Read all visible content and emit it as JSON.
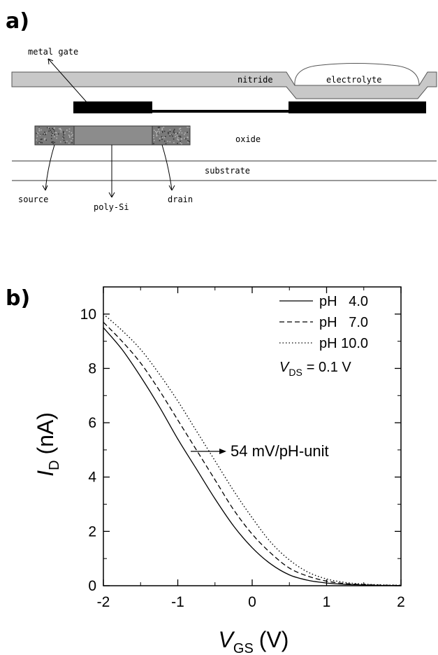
{
  "panel_a": {
    "label": "a)",
    "labels": {
      "metal_gate": "metal gate",
      "nitride": "nitride",
      "electrolyte": "electrolyte",
      "oxide": "oxide",
      "substrate": "substrate",
      "source": "source",
      "poly_si": "poly-Si",
      "drain": "drain"
    },
    "colors": {
      "nitride": "#c8c8c8",
      "gate": "#000000",
      "polysi": "#8c8c8c",
      "contact": "#7a7a7a"
    }
  },
  "panel_b": {
    "label": "b)",
    "annotation": "54 mV/pH-unit",
    "vds": {
      "symbol": "V",
      "subscript": "DS",
      "value": "= 0.1 V"
    }
  },
  "chart_data": {
    "type": "line",
    "title": "",
    "xlabel": {
      "symbol": "V",
      "subscript": "GS",
      "unit": "(V)"
    },
    "ylabel": {
      "symbol": "I",
      "subscript": "D",
      "unit": "(nA)"
    },
    "xlim": [
      -2,
      2
    ],
    "ylim": [
      0,
      11
    ],
    "x_ticks": [
      "-2",
      "-1",
      "0",
      "1",
      "2"
    ],
    "y_ticks": [
      "0",
      "2",
      "4",
      "6",
      "8",
      "10"
    ],
    "grid": false,
    "legend_position": "top-right",
    "x": [
      -2.0,
      -1.75,
      -1.5,
      -1.25,
      -1.0,
      -0.75,
      -0.5,
      -0.25,
      0.0,
      0.25,
      0.5,
      0.75,
      1.0,
      1.25,
      1.5,
      1.75,
      2.0
    ],
    "series": [
      {
        "name": "pH   4.0",
        "dash": "solid",
        "values": [
          9.5,
          8.7,
          7.7,
          6.6,
          5.4,
          4.3,
          3.2,
          2.2,
          1.4,
          0.8,
          0.4,
          0.2,
          0.1,
          0.05,
          0.03,
          0.01,
          0.01
        ]
      },
      {
        "name": "pH   7.0",
        "dash": "dashed",
        "values": [
          9.7,
          9.0,
          8.2,
          7.2,
          6.1,
          5.0,
          3.9,
          2.8,
          1.9,
          1.2,
          0.65,
          0.35,
          0.17,
          0.08,
          0.04,
          0.02,
          0.01
        ]
      },
      {
        "name": "pH 10.0",
        "dash": "dotted",
        "values": [
          10.0,
          9.4,
          8.7,
          7.8,
          6.8,
          5.7,
          4.6,
          3.5,
          2.5,
          1.6,
          0.95,
          0.5,
          0.25,
          0.12,
          0.06,
          0.03,
          0.02
        ]
      }
    ]
  }
}
